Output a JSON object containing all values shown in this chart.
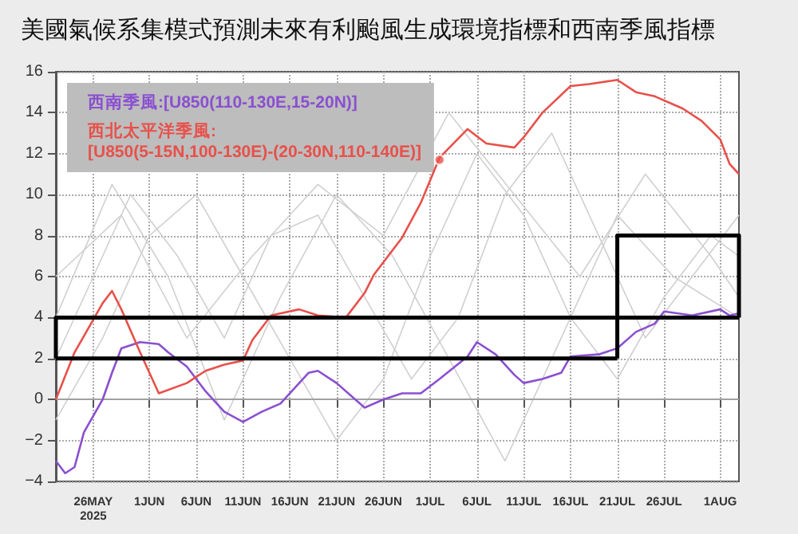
{
  "chart_data": {
    "type": "line",
    "title": "美國氣候系集模式預測未來有利颱風生成環境指標和西南季風指標",
    "xlim": [
      "2025-05-22",
      "2025-08-03"
    ],
    "xticks": [
      {
        "value": "2025-05-26",
        "label": "26MAY\n2025"
      },
      {
        "value": "2025-06-01",
        "label": "1JUN"
      },
      {
        "value": "2025-06-06",
        "label": "6JUN"
      },
      {
        "value": "2025-06-11",
        "label": "11JUN"
      },
      {
        "value": "2025-06-16",
        "label": "16JUN"
      },
      {
        "value": "2025-06-21",
        "label": "21JUN"
      },
      {
        "value": "2025-06-26",
        "label": "26JUN"
      },
      {
        "value": "2025-07-01",
        "label": "1JUL"
      },
      {
        "value": "2025-07-06",
        "label": "6JUL"
      },
      {
        "value": "2025-07-11",
        "label": "11JUL"
      },
      {
        "value": "2025-07-16",
        "label": "16JUL"
      },
      {
        "value": "2025-07-21",
        "label": "21JUL"
      },
      {
        "value": "2025-07-26",
        "label": "26JUL"
      },
      {
        "value": "2025-08-01",
        "label": "1AUG"
      }
    ],
    "ylim": [
      -4,
      16
    ],
    "yticks": [
      -4,
      -2,
      0,
      2,
      4,
      6,
      8,
      10,
      12,
      14,
      16
    ],
    "grid": true,
    "legend": "top left",
    "series": [
      {
        "color": "#d0d0d0",
        "x": [
          "2025-05-22",
          "2025-05-26",
          "2025-05-30",
          "2025-06-04",
          "2025-06-09",
          "2025-06-14",
          "2025-06-19",
          "2025-06-24",
          "2025-06-29",
          "2025-07-04",
          "2025-07-09",
          "2025-07-14",
          "2025-07-19",
          "2025-07-24",
          "2025-07-29",
          "2025-08-03"
        ],
        "values": [
          2,
          6,
          10,
          7,
          3,
          8,
          9,
          5,
          1,
          4,
          10,
          13,
          8,
          3,
          6,
          9
        ]
      },
      {
        "color": "#d0d0d0",
        "x": [
          "2025-05-22",
          "2025-05-27",
          "2025-06-01",
          "2025-06-06",
          "2025-06-11",
          "2025-06-16",
          "2025-06-21",
          "2025-06-26",
          "2025-07-01",
          "2025-07-06",
          "2025-07-11",
          "2025-07-16",
          "2025-07-21",
          "2025-07-26",
          "2025-07-31",
          "2025-08-03"
        ],
        "values": [
          -1,
          3,
          8,
          10,
          6,
          2,
          -2,
          1,
          7,
          12,
          9,
          4,
          1,
          5,
          8,
          7
        ]
      },
      {
        "color": "#d0d0d0",
        "x": [
          "2025-05-22",
          "2025-05-28",
          "2025-06-03",
          "2025-06-09",
          "2025-06-15",
          "2025-06-21",
          "2025-06-27",
          "2025-07-03",
          "2025-07-09",
          "2025-07-15",
          "2025-07-21",
          "2025-07-27",
          "2025-08-03"
        ],
        "values": [
          4,
          10.5,
          6,
          -1,
          5,
          10,
          7,
          2,
          -3,
          3,
          9,
          6,
          4
        ]
      },
      {
        "color": "#d0d0d0",
        "x": [
          "2025-05-22",
          "2025-05-29",
          "2025-06-05",
          "2025-06-12",
          "2025-06-19",
          "2025-06-26",
          "2025-07-03",
          "2025-07-10",
          "2025-07-17",
          "2025-07-24",
          "2025-07-31",
          "2025-08-03"
        ],
        "values": [
          6,
          9,
          3,
          7,
          10.5,
          8,
          14,
          10,
          6,
          11,
          7,
          5
        ]
      },
      {
        "name": "西南季風:[U850(110-130E,15-20N)]",
        "color": "#8a4fd0",
        "x": [
          "2025-05-22",
          "2025-05-23",
          "2025-05-24",
          "2025-05-25",
          "2025-05-27",
          "2025-05-28",
          "2025-05-29",
          "2025-05-31",
          "2025-06-02",
          "2025-06-03",
          "2025-06-05",
          "2025-06-07",
          "2025-06-09",
          "2025-06-11",
          "2025-06-13",
          "2025-06-15",
          "2025-06-18",
          "2025-06-19",
          "2025-06-21",
          "2025-06-23",
          "2025-06-24",
          "2025-06-26",
          "2025-06-28",
          "2025-06-30",
          "2025-07-02",
          "2025-07-05",
          "2025-07-06",
          "2025-07-08",
          "2025-07-10",
          "2025-07-11",
          "2025-07-13",
          "2025-07-15",
          "2025-07-16",
          "2025-07-19",
          "2025-07-21",
          "2025-07-23",
          "2025-07-25",
          "2025-07-26",
          "2025-07-29",
          "2025-08-01",
          "2025-08-02",
          "2025-08-03"
        ],
        "values": [
          -3.0,
          -3.6,
          -3.3,
          -1.6,
          0,
          1.3,
          2.5,
          2.8,
          2.7,
          2.3,
          1.6,
          0.4,
          -0.6,
          -1.1,
          -0.6,
          -0.2,
          1.3,
          1.4,
          0.8,
          0,
          -0.4,
          0,
          0.3,
          0.3,
          1.0,
          2.1,
          2.8,
          2.2,
          1.2,
          0.8,
          1.0,
          1.3,
          2.1,
          2.2,
          2.5,
          3.3,
          3.7,
          4.3,
          4.1,
          4.4,
          4.1,
          4.2
        ]
      },
      {
        "name": "西北太平洋季風:\n[U850(5-15N,100-130E)-(20-30N,110-140E)]",
        "color": "#e8504a",
        "x": [
          "2025-05-22",
          "2025-05-24",
          "2025-05-25",
          "2025-05-27",
          "2025-05-28",
          "2025-05-29",
          "2025-05-31",
          "2025-06-02",
          "2025-06-05",
          "2025-06-07",
          "2025-06-09",
          "2025-06-11",
          "2025-06-12",
          "2025-06-14",
          "2025-06-17",
          "2025-06-19",
          "2025-06-22",
          "2025-06-24",
          "2025-06-25",
          "2025-06-28",
          "2025-06-30",
          "2025-07-02",
          "2025-07-05",
          "2025-07-07",
          "2025-07-10",
          "2025-07-11",
          "2025-07-13",
          "2025-07-16",
          "2025-07-18",
          "2025-07-21",
          "2025-07-23",
          "2025-07-25",
          "2025-07-28",
          "2025-07-30",
          "2025-08-01",
          "2025-08-02",
          "2025-08-03"
        ],
        "values": [
          0,
          2.3,
          3.1,
          4.7,
          5.3,
          4.4,
          2.3,
          0.3,
          0.8,
          1.4,
          1.7,
          1.9,
          2.9,
          4.1,
          4.4,
          4.1,
          4.0,
          5.2,
          6.1,
          7.9,
          9.6,
          11.8,
          13.2,
          12.5,
          12.3,
          12.8,
          14.0,
          15.3,
          15.4,
          15.6,
          15.0,
          14.8,
          14.2,
          13.6,
          12.7,
          11.5,
          11.0
        ]
      },
      {
        "type": "scatter",
        "color": "#e8504a",
        "marker": "circle",
        "x": [
          "2025-07-02"
        ],
        "values": [
          11.7
        ]
      },
      {
        "color": "#000000",
        "x": [
          "2025-05-22",
          "2025-05-22",
          "2025-07-21",
          "2025-07-21"
        ],
        "values": [
          2,
          4,
          4,
          2
        ]
      },
      {
        "color": "#000000",
        "x": [
          "2025-05-22",
          "2025-07-21"
        ],
        "values": [
          2,
          2
        ]
      },
      {
        "color": "#000000",
        "x": [
          "2025-07-21",
          "2025-07-21",
          "2025-08-03",
          "2025-08-03"
        ],
        "values": [
          4,
          8,
          8,
          4
        ]
      },
      {
        "color": "#000000",
        "x": [
          "2025-07-21",
          "2025-08-03"
        ],
        "values": [
          4,
          4
        ]
      }
    ],
    "ref_lines": [
      {
        "axis": "y",
        "value": 0,
        "color": "#a0a0a0"
      }
    ]
  }
}
